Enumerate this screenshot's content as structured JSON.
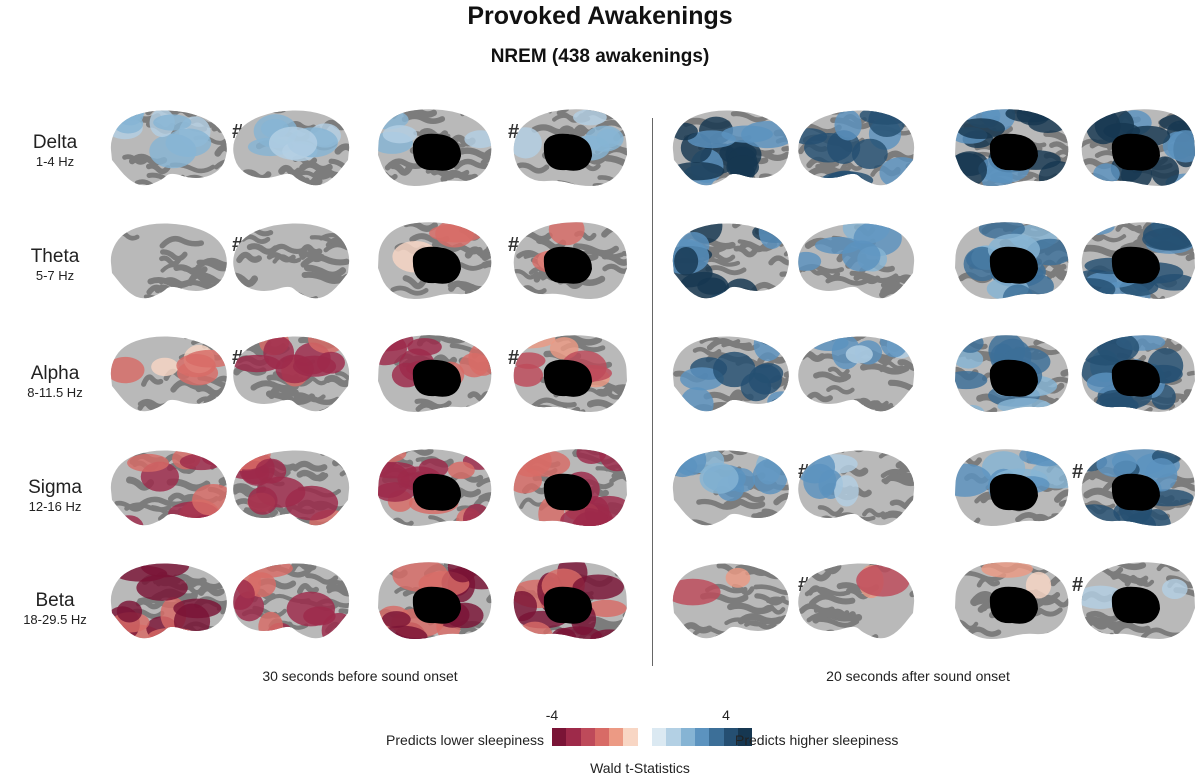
{
  "figure": {
    "title": "Provoked Awakenings",
    "subtitle": "NREM (438 awakenings)",
    "significance_mark": "#",
    "time_windows": [
      "30 seconds before sound onset",
      "20 seconds after sound onset"
    ],
    "views": [
      "left-lateral",
      "right-lateral",
      "left-medial",
      "right-medial"
    ],
    "bands": [
      {
        "name": "Delta",
        "freq": "1-4 Hz",
        "color": "#2a3d7a",
        "panels": [
          {
            "effect": 0.45,
            "coverage": 0.55,
            "hash": true
          },
          {
            "effect": 0.45,
            "coverage": 0.45,
            "hash": false
          },
          {
            "effect": 0.4,
            "coverage": 0.25,
            "hash": true
          },
          {
            "effect": 0.4,
            "coverage": 0.3,
            "hash": false
          },
          {
            "effect": 0.95,
            "coverage": 0.95,
            "hash": false
          },
          {
            "effect": 0.85,
            "coverage": 0.75,
            "hash": false
          },
          {
            "effect": 0.95,
            "coverage": 0.95,
            "hash": false
          },
          {
            "effect": 0.95,
            "coverage": 0.95,
            "hash": false
          }
        ]
      },
      {
        "name": "Theta",
        "freq": "5-7 Hz",
        "color": "#2a9090",
        "panels": [
          {
            "effect": 0.3,
            "coverage": 0.03,
            "hash": true
          },
          {
            "effect": 0.3,
            "coverage": 0.03,
            "hash": false
          },
          {
            "effect": -0.5,
            "coverage": 0.18,
            "hash": true
          },
          {
            "effect": -0.5,
            "coverage": 0.2,
            "hash": false
          },
          {
            "effect": 0.95,
            "coverage": 0.75,
            "hash": false
          },
          {
            "effect": 0.55,
            "coverage": 0.35,
            "hash": false
          },
          {
            "effect": 0.7,
            "coverage": 0.8,
            "hash": false
          },
          {
            "effect": 0.8,
            "coverage": 0.85,
            "hash": false
          }
        ]
      },
      {
        "name": "Alpha",
        "freq": "8-11.5 Hz",
        "color": "#3db57a",
        "panels": [
          {
            "effect": -0.5,
            "coverage": 0.35,
            "hash": true
          },
          {
            "effect": -0.8,
            "coverage": 0.55,
            "hash": false
          },
          {
            "effect": -0.8,
            "coverage": 0.55,
            "hash": true
          },
          {
            "effect": -0.7,
            "coverage": 0.45,
            "hash": false
          },
          {
            "effect": 0.85,
            "coverage": 0.7,
            "hash": false
          },
          {
            "effect": 0.5,
            "coverage": 0.35,
            "hash": false
          },
          {
            "effect": 0.7,
            "coverage": 0.8,
            "hash": false
          },
          {
            "effect": 0.8,
            "coverage": 0.85,
            "hash": false
          }
        ]
      },
      {
        "name": "Sigma",
        "freq": "12-16 Hz",
        "color": "#a6c92e",
        "panels": [
          {
            "effect": -0.8,
            "coverage": 0.65,
            "hash": false
          },
          {
            "effect": -0.85,
            "coverage": 0.7,
            "hash": false
          },
          {
            "effect": -0.9,
            "coverage": 0.9,
            "hash": false
          },
          {
            "effect": -0.9,
            "coverage": 0.9,
            "hash": false
          },
          {
            "effect": 0.6,
            "coverage": 0.55,
            "hash": true
          },
          {
            "effect": 0.5,
            "coverage": 0.3,
            "hash": false
          },
          {
            "effect": 0.6,
            "coverage": 0.5,
            "hash": true
          },
          {
            "effect": 0.8,
            "coverage": 0.85,
            "hash": false
          }
        ]
      },
      {
        "name": "Beta",
        "freq": "18-29.5 Hz",
        "color": "#d9a32b",
        "panels": [
          {
            "effect": -0.95,
            "coverage": 0.75,
            "hash": false
          },
          {
            "effect": -0.9,
            "coverage": 0.7,
            "hash": false
          },
          {
            "effect": -0.95,
            "coverage": 0.95,
            "hash": false
          },
          {
            "effect": -0.95,
            "coverage": 0.95,
            "hash": false
          },
          {
            "effect": -0.7,
            "coverage": 0.1,
            "hash": true
          },
          {
            "effect": -0.7,
            "coverage": 0.15,
            "hash": false
          },
          {
            "effect": -0.4,
            "coverage": 0.15,
            "hash": true
          },
          {
            "effect": 0.3,
            "coverage": 0.15,
            "hash": false
          }
        ]
      }
    ],
    "colorbar": {
      "min_label": "-4",
      "max_label": "4",
      "low_label": "Predicts lower sleepiness",
      "high_label": "Predicts higher sleepiness",
      "stat_label": "Wald t-Statistics",
      "colors": [
        "#7a1436",
        "#9e2a4a",
        "#be4a5a",
        "#d86b66",
        "#ec9a84",
        "#f8d6c4",
        "#ffffff",
        "#dbe9f2",
        "#b3d0e4",
        "#86b4d4",
        "#5c93bf",
        "#3c6f98",
        "#254f72",
        "#163751"
      ]
    }
  }
}
